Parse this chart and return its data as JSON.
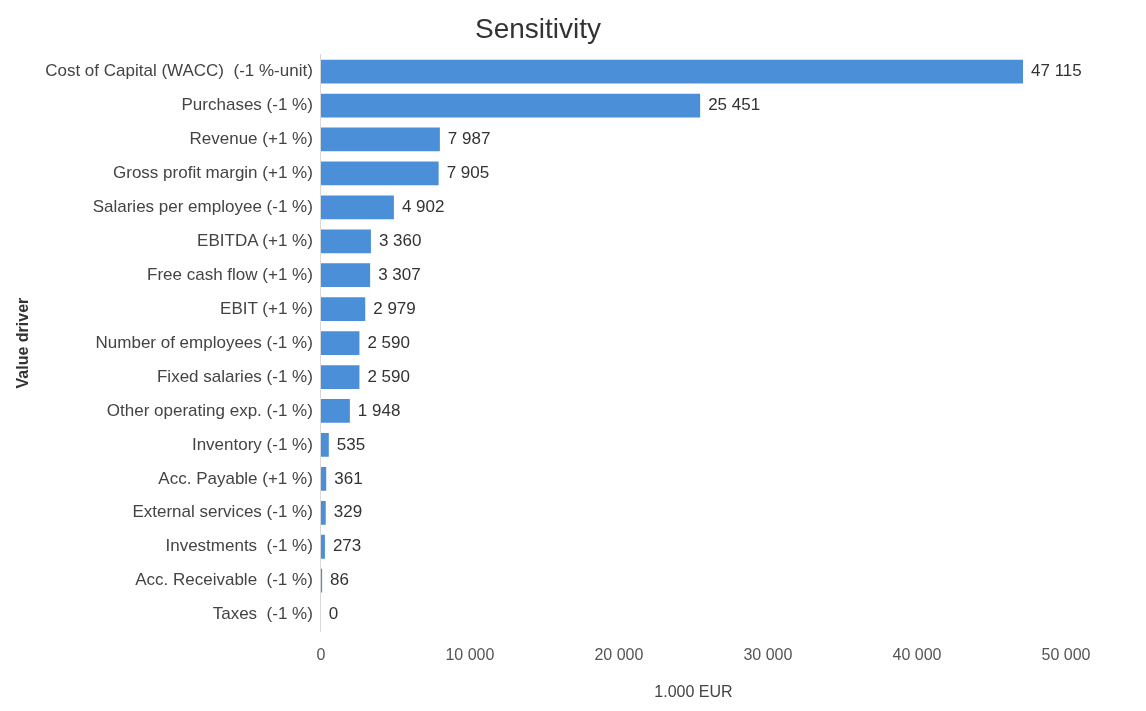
{
  "chart_data": {
    "type": "bar",
    "orientation": "horizontal",
    "title": "Sensitivity",
    "ylabel": "Value driver",
    "xlabel": "1.000 EUR",
    "categories": [
      "Cost of Capital (WACC)  (-1 %-unit)",
      "Purchases (-1 %)",
      "Revenue (+1 %)",
      "Gross profit margin (+1 %)",
      "Salaries per employee (-1 %)",
      "EBITDA (+1 %)",
      "Free cash flow (+1 %)",
      "EBIT (+1 %)",
      "Number of employees (-1 %)",
      "Fixed salaries (-1 %)",
      "Other operating exp. (-1 %)",
      "Inventory (-1 %)",
      "Acc. Payable (+1 %)",
      "External services (-1 %)",
      "Investments  (-1 %)",
      "Acc. Receivable  (-1 %)",
      "Taxes  (-1 %)"
    ],
    "values": [
      47115,
      25451,
      7987,
      7905,
      4902,
      3360,
      3307,
      2979,
      2590,
      2590,
      1948,
      535,
      361,
      329,
      273,
      86,
      0
    ],
    "value_labels": [
      "47 115",
      "25 451",
      "7 987",
      "7 905",
      "4 902",
      "3 360",
      "3 307",
      "2 979",
      "2 590",
      "2 590",
      "1 948",
      "535",
      "361",
      "329",
      "273",
      "86",
      "0"
    ],
    "color": "#4a8fd8",
    "xlim": [
      0,
      50000
    ],
    "xticks": [
      {
        "value": 0,
        "label": "0"
      },
      {
        "value": 10000,
        "label": "10 000"
      },
      {
        "value": 20000,
        "label": "20 000"
      },
      {
        "value": 30000,
        "label": "30 000"
      },
      {
        "value": 40000,
        "label": "40 000"
      },
      {
        "value": 50000,
        "label": "50 000"
      }
    ],
    "grid": false,
    "legend": false
  }
}
